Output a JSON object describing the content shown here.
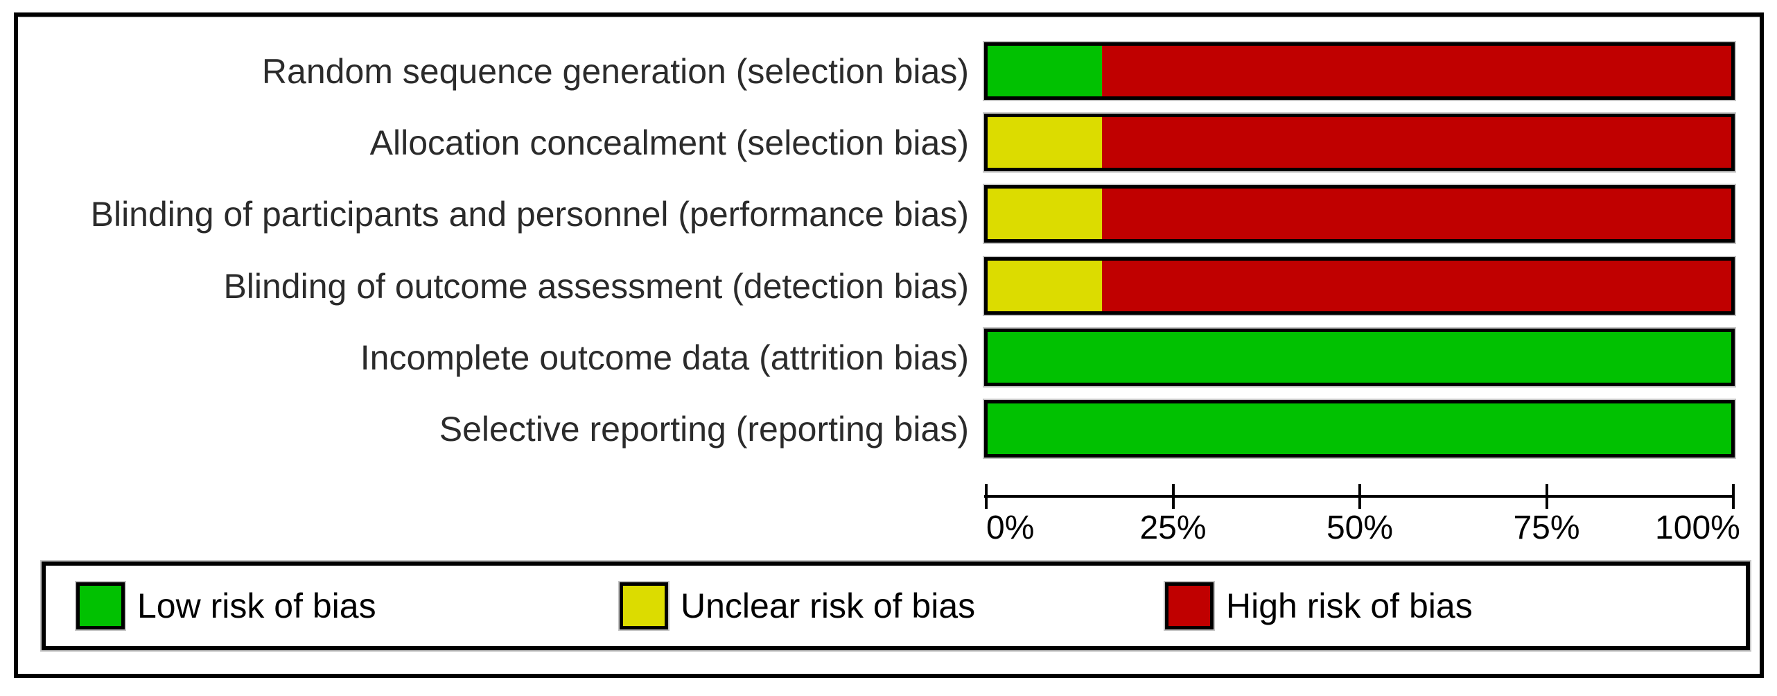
{
  "chart_data": {
    "type": "bar",
    "subtype": "horizontal-stacked-percentage",
    "title": "",
    "categories": [
      "Random sequence generation (selection bias)",
      "Allocation concealment (selection bias)",
      "Blinding of participants and personnel (performance bias)",
      "Blinding of outcome assessment (detection bias)",
      "Incomplete outcome data (attrition bias)",
      "Selective reporting (reporting bias)"
    ],
    "series": [
      {
        "name": "Low risk of bias",
        "color": "#01c101",
        "values": [
          15.4,
          0,
          0,
          0,
          100,
          100
        ]
      },
      {
        "name": "Unclear risk of bias",
        "color": "#dcdc00",
        "values": [
          0,
          15.4,
          15.4,
          15.4,
          0,
          0
        ]
      },
      {
        "name": "High risk of bias",
        "color": "#c00000",
        "values": [
          84.6,
          84.6,
          84.6,
          84.6,
          0,
          0
        ]
      }
    ],
    "x_axis": {
      "range": [
        0,
        100
      ],
      "tick_labels": [
        "0%",
        "25%",
        "50%",
        "75%",
        "100%"
      ],
      "tick_values": [
        0,
        25,
        50,
        75,
        100
      ]
    },
    "legend": {
      "position": "bottom",
      "items": [
        {
          "label": "Low risk of bias",
          "color": "#01c101"
        },
        {
          "label": "Unclear risk of bias",
          "color": "#dcdc00"
        },
        {
          "label": "High risk of bias",
          "color": "#c00000"
        }
      ]
    },
    "layout": {
      "row_tops": [
        61,
        164,
        267,
        371,
        474,
        577
      ],
      "legend_item_lefts": [
        44,
        828,
        1615
      ]
    }
  }
}
